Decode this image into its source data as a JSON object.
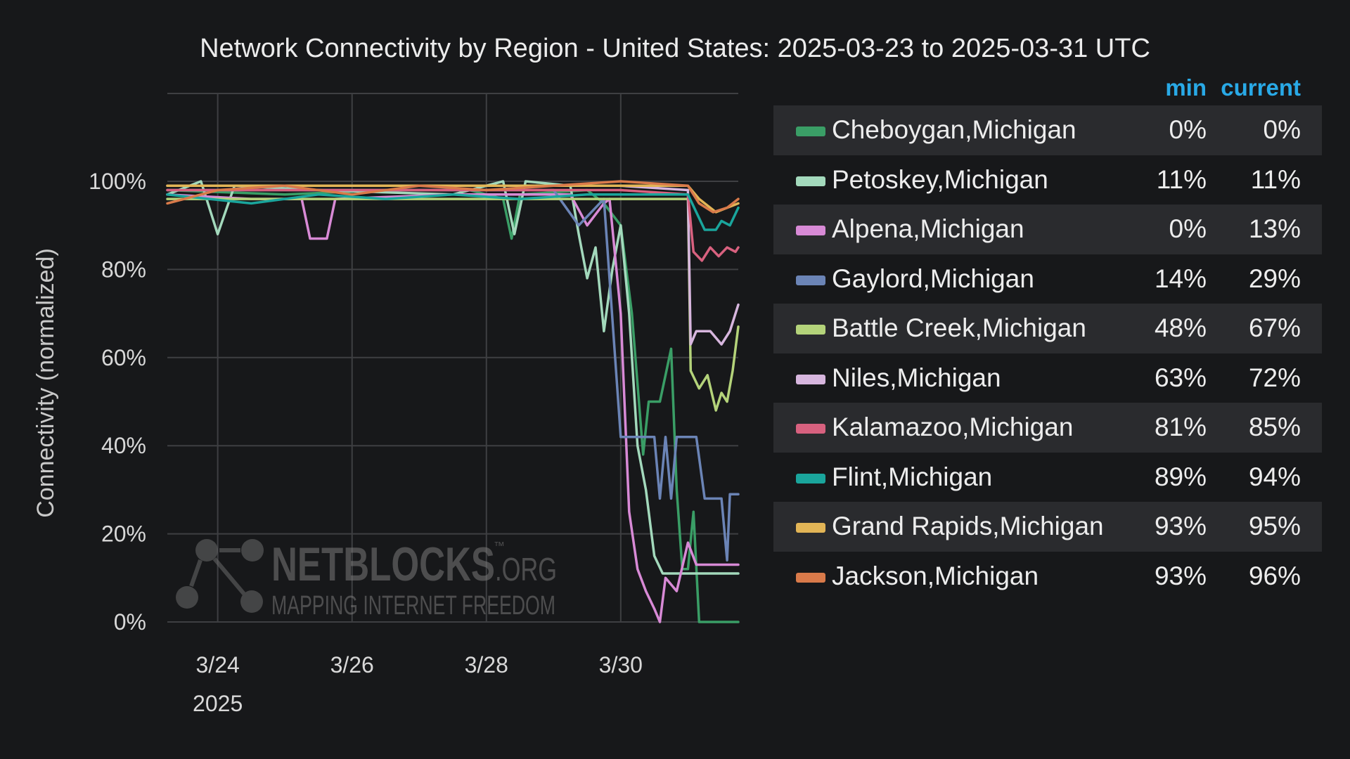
{
  "title": "Network Connectivity by Region - United States: 2025-03-23 to 2025-03-31 UTC",
  "legend_header": {
    "min": "min",
    "current": "current"
  },
  "watermark": {
    "brand": "NETBLOCKS",
    "tm": "™",
    "org": ".ORG",
    "tagline": "MAPPING INTERNET FREEDOM"
  },
  "chart_data": {
    "type": "line",
    "title": "Network Connectivity by Region - United States: 2025-03-23 to 2025-03-31 UTC",
    "ylabel": "Connectivity (normalized)",
    "xlabel": "",
    "ylim": [
      0,
      100
    ],
    "yticks": [
      0,
      20,
      40,
      60,
      80,
      100
    ],
    "ytick_labels": [
      "0%",
      "20%",
      "40%",
      "60%",
      "80%",
      "100%"
    ],
    "xlim": [
      "2025-03-23T06:00",
      "2025-03-31T18:00"
    ],
    "xticks": [
      "2025-03-24",
      "2025-03-26",
      "2025-03-28",
      "2025-03-30"
    ],
    "xtick_labels": [
      "3/24",
      "3/26",
      "3/28",
      "3/30"
    ],
    "xtick_year": "2025",
    "grid": true,
    "legend_position": "right",
    "series": [
      {
        "name": "Cheboygan,Michigan",
        "color": "#3a9e66",
        "min": "0%",
        "current": "0%",
        "points": [
          [
            "2025-03-23T06:00",
            98
          ],
          [
            "2025-03-25T00:00",
            97
          ],
          [
            "2025-03-26T12:00",
            98
          ],
          [
            "2025-03-27T18:00",
            98
          ],
          [
            "2025-03-28T06:00",
            96
          ],
          [
            "2025-03-28T09:00",
            87
          ],
          [
            "2025-03-28T12:00",
            97
          ],
          [
            "2025-03-29T12:00",
            98
          ],
          [
            "2025-03-29T18:00",
            95
          ],
          [
            "2025-03-30T00:00",
            90
          ],
          [
            "2025-03-30T04:00",
            70
          ],
          [
            "2025-03-30T08:00",
            38
          ],
          [
            "2025-03-30T10:00",
            50
          ],
          [
            "2025-03-30T14:00",
            50
          ],
          [
            "2025-03-30T18:00",
            62
          ],
          [
            "2025-03-30T20:00",
            30
          ],
          [
            "2025-03-30T22:00",
            12
          ],
          [
            "2025-03-31T00:00",
            12
          ],
          [
            "2025-03-31T02:00",
            25
          ],
          [
            "2025-03-31T04:00",
            0
          ],
          [
            "2025-03-31T18:00",
            0
          ]
        ]
      },
      {
        "name": "Petoskey,Michigan",
        "color": "#a3d9bc",
        "min": "11%",
        "current": "11%",
        "points": [
          [
            "2025-03-23T06:00",
            97
          ],
          [
            "2025-03-23T18:00",
            100
          ],
          [
            "2025-03-24T00:00",
            88
          ],
          [
            "2025-03-24T06:00",
            99
          ],
          [
            "2025-03-25T12:00",
            98
          ],
          [
            "2025-03-27T12:00",
            97
          ],
          [
            "2025-03-28T06:00",
            100
          ],
          [
            "2025-03-28T10:00",
            88
          ],
          [
            "2025-03-28T14:00",
            100
          ],
          [
            "2025-03-29T06:00",
            99
          ],
          [
            "2025-03-29T09:00",
            88
          ],
          [
            "2025-03-29T12:00",
            78
          ],
          [
            "2025-03-29T15:00",
            85
          ],
          [
            "2025-03-29T18:00",
            66
          ],
          [
            "2025-03-29T21:00",
            80
          ],
          [
            "2025-03-30T00:00",
            90
          ],
          [
            "2025-03-30T03:00",
            70
          ],
          [
            "2025-03-30T06:00",
            40
          ],
          [
            "2025-03-30T09:00",
            30
          ],
          [
            "2025-03-30T12:00",
            15
          ],
          [
            "2025-03-30T15:00",
            11
          ],
          [
            "2025-03-31T18:00",
            11
          ]
        ]
      },
      {
        "name": "Alpena,Michigan",
        "color": "#d88ad6",
        "min": "0%",
        "current": "13%",
        "points": [
          [
            "2025-03-23T06:00",
            97
          ],
          [
            "2025-03-24T12:00",
            96
          ],
          [
            "2025-03-25T06:00",
            96
          ],
          [
            "2025-03-25T09:00",
            87
          ],
          [
            "2025-03-25T15:00",
            87
          ],
          [
            "2025-03-25T18:00",
            96
          ],
          [
            "2025-03-27T12:00",
            97
          ],
          [
            "2025-03-29T06:00",
            97
          ],
          [
            "2025-03-29T12:00",
            90
          ],
          [
            "2025-03-29T18:00",
            95
          ],
          [
            "2025-03-29T20:00",
            96
          ],
          [
            "2025-03-30T00:00",
            70
          ],
          [
            "2025-03-30T03:00",
            25
          ],
          [
            "2025-03-30T06:00",
            12
          ],
          [
            "2025-03-30T09:00",
            7
          ],
          [
            "2025-03-30T12:00",
            3
          ],
          [
            "2025-03-30T14:00",
            0
          ],
          [
            "2025-03-30T16:00",
            10
          ],
          [
            "2025-03-30T20:00",
            7
          ],
          [
            "2025-03-31T00:00",
            18
          ],
          [
            "2025-03-31T03:00",
            13
          ],
          [
            "2025-03-31T18:00",
            13
          ]
        ]
      },
      {
        "name": "Gaylord,Michigan",
        "color": "#6b84b6",
        "min": "14%",
        "current": "29%",
        "points": [
          [
            "2025-03-23T06:00",
            98
          ],
          [
            "2025-03-25T12:00",
            98
          ],
          [
            "2025-03-27T12:00",
            98
          ],
          [
            "2025-03-29T00:00",
            98
          ],
          [
            "2025-03-29T09:00",
            90
          ],
          [
            "2025-03-29T18:00",
            96
          ],
          [
            "2025-03-30T00:00",
            42
          ],
          [
            "2025-03-30T12:00",
            42
          ],
          [
            "2025-03-30T14:00",
            28
          ],
          [
            "2025-03-30T16:00",
            42
          ],
          [
            "2025-03-30T18:00",
            28
          ],
          [
            "2025-03-30T20:00",
            42
          ],
          [
            "2025-03-31T03:00",
            42
          ],
          [
            "2025-03-31T06:00",
            28
          ],
          [
            "2025-03-31T12:00",
            28
          ],
          [
            "2025-03-31T14:00",
            14
          ],
          [
            "2025-03-31T15:00",
            29
          ],
          [
            "2025-03-31T18:00",
            29
          ]
        ]
      },
      {
        "name": "Battle Creek,Michigan",
        "color": "#b4d37a",
        "min": "48%",
        "current": "67%",
        "points": [
          [
            "2025-03-23T06:00",
            96
          ],
          [
            "2025-03-30T00:00",
            96
          ],
          [
            "2025-03-31T00:00",
            96
          ],
          [
            "2025-03-31T01:00",
            57
          ],
          [
            "2025-03-31T04:00",
            53
          ],
          [
            "2025-03-31T07:00",
            56
          ],
          [
            "2025-03-31T10:00",
            48
          ],
          [
            "2025-03-31T12:00",
            52
          ],
          [
            "2025-03-31T14:00",
            50
          ],
          [
            "2025-03-31T16:00",
            57
          ],
          [
            "2025-03-31T18:00",
            67
          ]
        ]
      },
      {
        "name": "Niles,Michigan",
        "color": "#d7b6de",
        "min": "63%",
        "current": "72%",
        "points": [
          [
            "2025-03-23T06:00",
            99
          ],
          [
            "2025-03-25T12:00",
            99
          ],
          [
            "2025-03-27T12:00",
            99
          ],
          [
            "2025-03-30T00:00",
            99
          ],
          [
            "2025-03-31T00:00",
            98
          ],
          [
            "2025-03-31T01:00",
            63
          ],
          [
            "2025-03-31T03:00",
            66
          ],
          [
            "2025-03-31T08:00",
            66
          ],
          [
            "2025-03-31T12:00",
            63
          ],
          [
            "2025-03-31T15:00",
            66
          ],
          [
            "2025-03-31T18:00",
            72
          ]
        ]
      },
      {
        "name": "Kalamazoo,Michigan",
        "color": "#d8617f",
        "min": "81%",
        "current": "85%",
        "points": [
          [
            "2025-03-23T06:00",
            98
          ],
          [
            "2025-03-25T12:00",
            98
          ],
          [
            "2025-03-27T12:00",
            98
          ],
          [
            "2025-03-30T00:00",
            98
          ],
          [
            "2025-03-31T00:00",
            97
          ],
          [
            "2025-03-31T02:00",
            84
          ],
          [
            "2025-03-31T05:00",
            82
          ],
          [
            "2025-03-31T08:00",
            85
          ],
          [
            "2025-03-31T11:00",
            83
          ],
          [
            "2025-03-31T14:00",
            85
          ],
          [
            "2025-03-31T17:00",
            84
          ],
          [
            "2025-03-31T18:00",
            85
          ]
        ]
      },
      {
        "name": "Flint,Michigan",
        "color": "#1aa59c",
        "min": "89%",
        "current": "94%",
        "points": [
          [
            "2025-03-23T06:00",
            97
          ],
          [
            "2025-03-24T12:00",
            95
          ],
          [
            "2025-03-25T12:00",
            97
          ],
          [
            "2025-03-26T12:00",
            96
          ],
          [
            "2025-03-27T12:00",
            97
          ],
          [
            "2025-03-28T12:00",
            96
          ],
          [
            "2025-03-29T12:00",
            97
          ],
          [
            "2025-03-30T12:00",
            97
          ],
          [
            "2025-03-31T00:00",
            97
          ],
          [
            "2025-03-31T03:00",
            93
          ],
          [
            "2025-03-31T06:00",
            89
          ],
          [
            "2025-03-31T10:00",
            89
          ],
          [
            "2025-03-31T12:00",
            91
          ],
          [
            "2025-03-31T15:00",
            90
          ],
          [
            "2025-03-31T18:00",
            94
          ]
        ]
      },
      {
        "name": "Grand Rapids,Michigan",
        "color": "#e2b556",
        "min": "93%",
        "current": "95%",
        "points": [
          [
            "2025-03-23T06:00",
            99
          ],
          [
            "2025-03-25T00:00",
            99
          ],
          [
            "2025-03-27T00:00",
            99
          ],
          [
            "2025-03-29T00:00",
            99
          ],
          [
            "2025-03-30T12:00",
            99
          ],
          [
            "2025-03-31T00:00",
            99
          ],
          [
            "2025-03-31T04:00",
            96
          ],
          [
            "2025-03-31T10:00",
            93
          ],
          [
            "2025-03-31T14:00",
            94
          ],
          [
            "2025-03-31T18:00",
            95
          ]
        ]
      },
      {
        "name": "Jackson,Michigan",
        "color": "#d97a4a",
        "min": "93%",
        "current": "96%",
        "points": [
          [
            "2025-03-23T06:00",
            95
          ],
          [
            "2025-03-24T00:00",
            98
          ],
          [
            "2025-03-25T00:00",
            99
          ],
          [
            "2025-03-26T00:00",
            97
          ],
          [
            "2025-03-27T00:00",
            99
          ],
          [
            "2025-03-28T00:00",
            98
          ],
          [
            "2025-03-29T00:00",
            99
          ],
          [
            "2025-03-30T00:00",
            100
          ],
          [
            "2025-03-31T00:00",
            99
          ],
          [
            "2025-03-31T04:00",
            95
          ],
          [
            "2025-03-31T09:00",
            93
          ],
          [
            "2025-03-31T14:00",
            94
          ],
          [
            "2025-03-31T18:00",
            96
          ]
        ]
      }
    ]
  }
}
